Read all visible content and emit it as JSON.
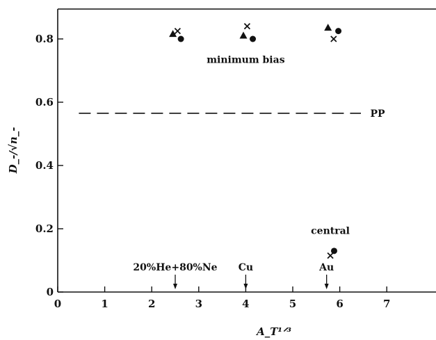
{
  "chart_data": {
    "type": "scatter",
    "title": "",
    "xlabel": "A_T^{1/3}",
    "ylabel": "D_-/√n_-",
    "xlim": [
      0,
      8
    ],
    "ylim": [
      0,
      0.9
    ],
    "x_ticks": [
      "0",
      "1",
      "2",
      "3",
      "4",
      "5",
      "6",
      "7"
    ],
    "y_ticks": [
      "0",
      "0.2",
      "0.4",
      "0.6",
      "0.8"
    ],
    "series": [
      {
        "marker": "triangle",
        "points": [
          {
            "x": 2.45,
            "y": 0.815
          },
          {
            "x": 3.95,
            "y": 0.81
          },
          {
            "x": 5.75,
            "y": 0.835
          }
        ]
      },
      {
        "marker": "x",
        "points": [
          {
            "x": 2.55,
            "y": 0.825
          },
          {
            "x": 4.03,
            "y": 0.84
          },
          {
            "x": 5.87,
            "y": 0.8
          },
          {
            "x": 5.8,
            "y": 0.115
          }
        ]
      },
      {
        "marker": "circle",
        "points": [
          {
            "x": 2.62,
            "y": 0.8
          },
          {
            "x": 4.15,
            "y": 0.8
          },
          {
            "x": 5.97,
            "y": 0.825
          },
          {
            "x": 5.88,
            "y": 0.13
          }
        ]
      }
    ],
    "reference_lines": [
      {
        "label": "PP",
        "y": 0.565,
        "style": "dashed"
      }
    ],
    "annotations": [
      {
        "text": "minimum bias",
        "x": 4.0,
        "y": 0.735
      },
      {
        "text": "central",
        "x": 5.8,
        "y": 0.195
      }
    ],
    "arrows": [
      {
        "label": "20%He+80%Ne",
        "x": 2.5
      },
      {
        "label": "Cu",
        "x": 4.0
      },
      {
        "label": "Au",
        "x": 5.72
      }
    ],
    "grid": false,
    "legend": "none"
  }
}
